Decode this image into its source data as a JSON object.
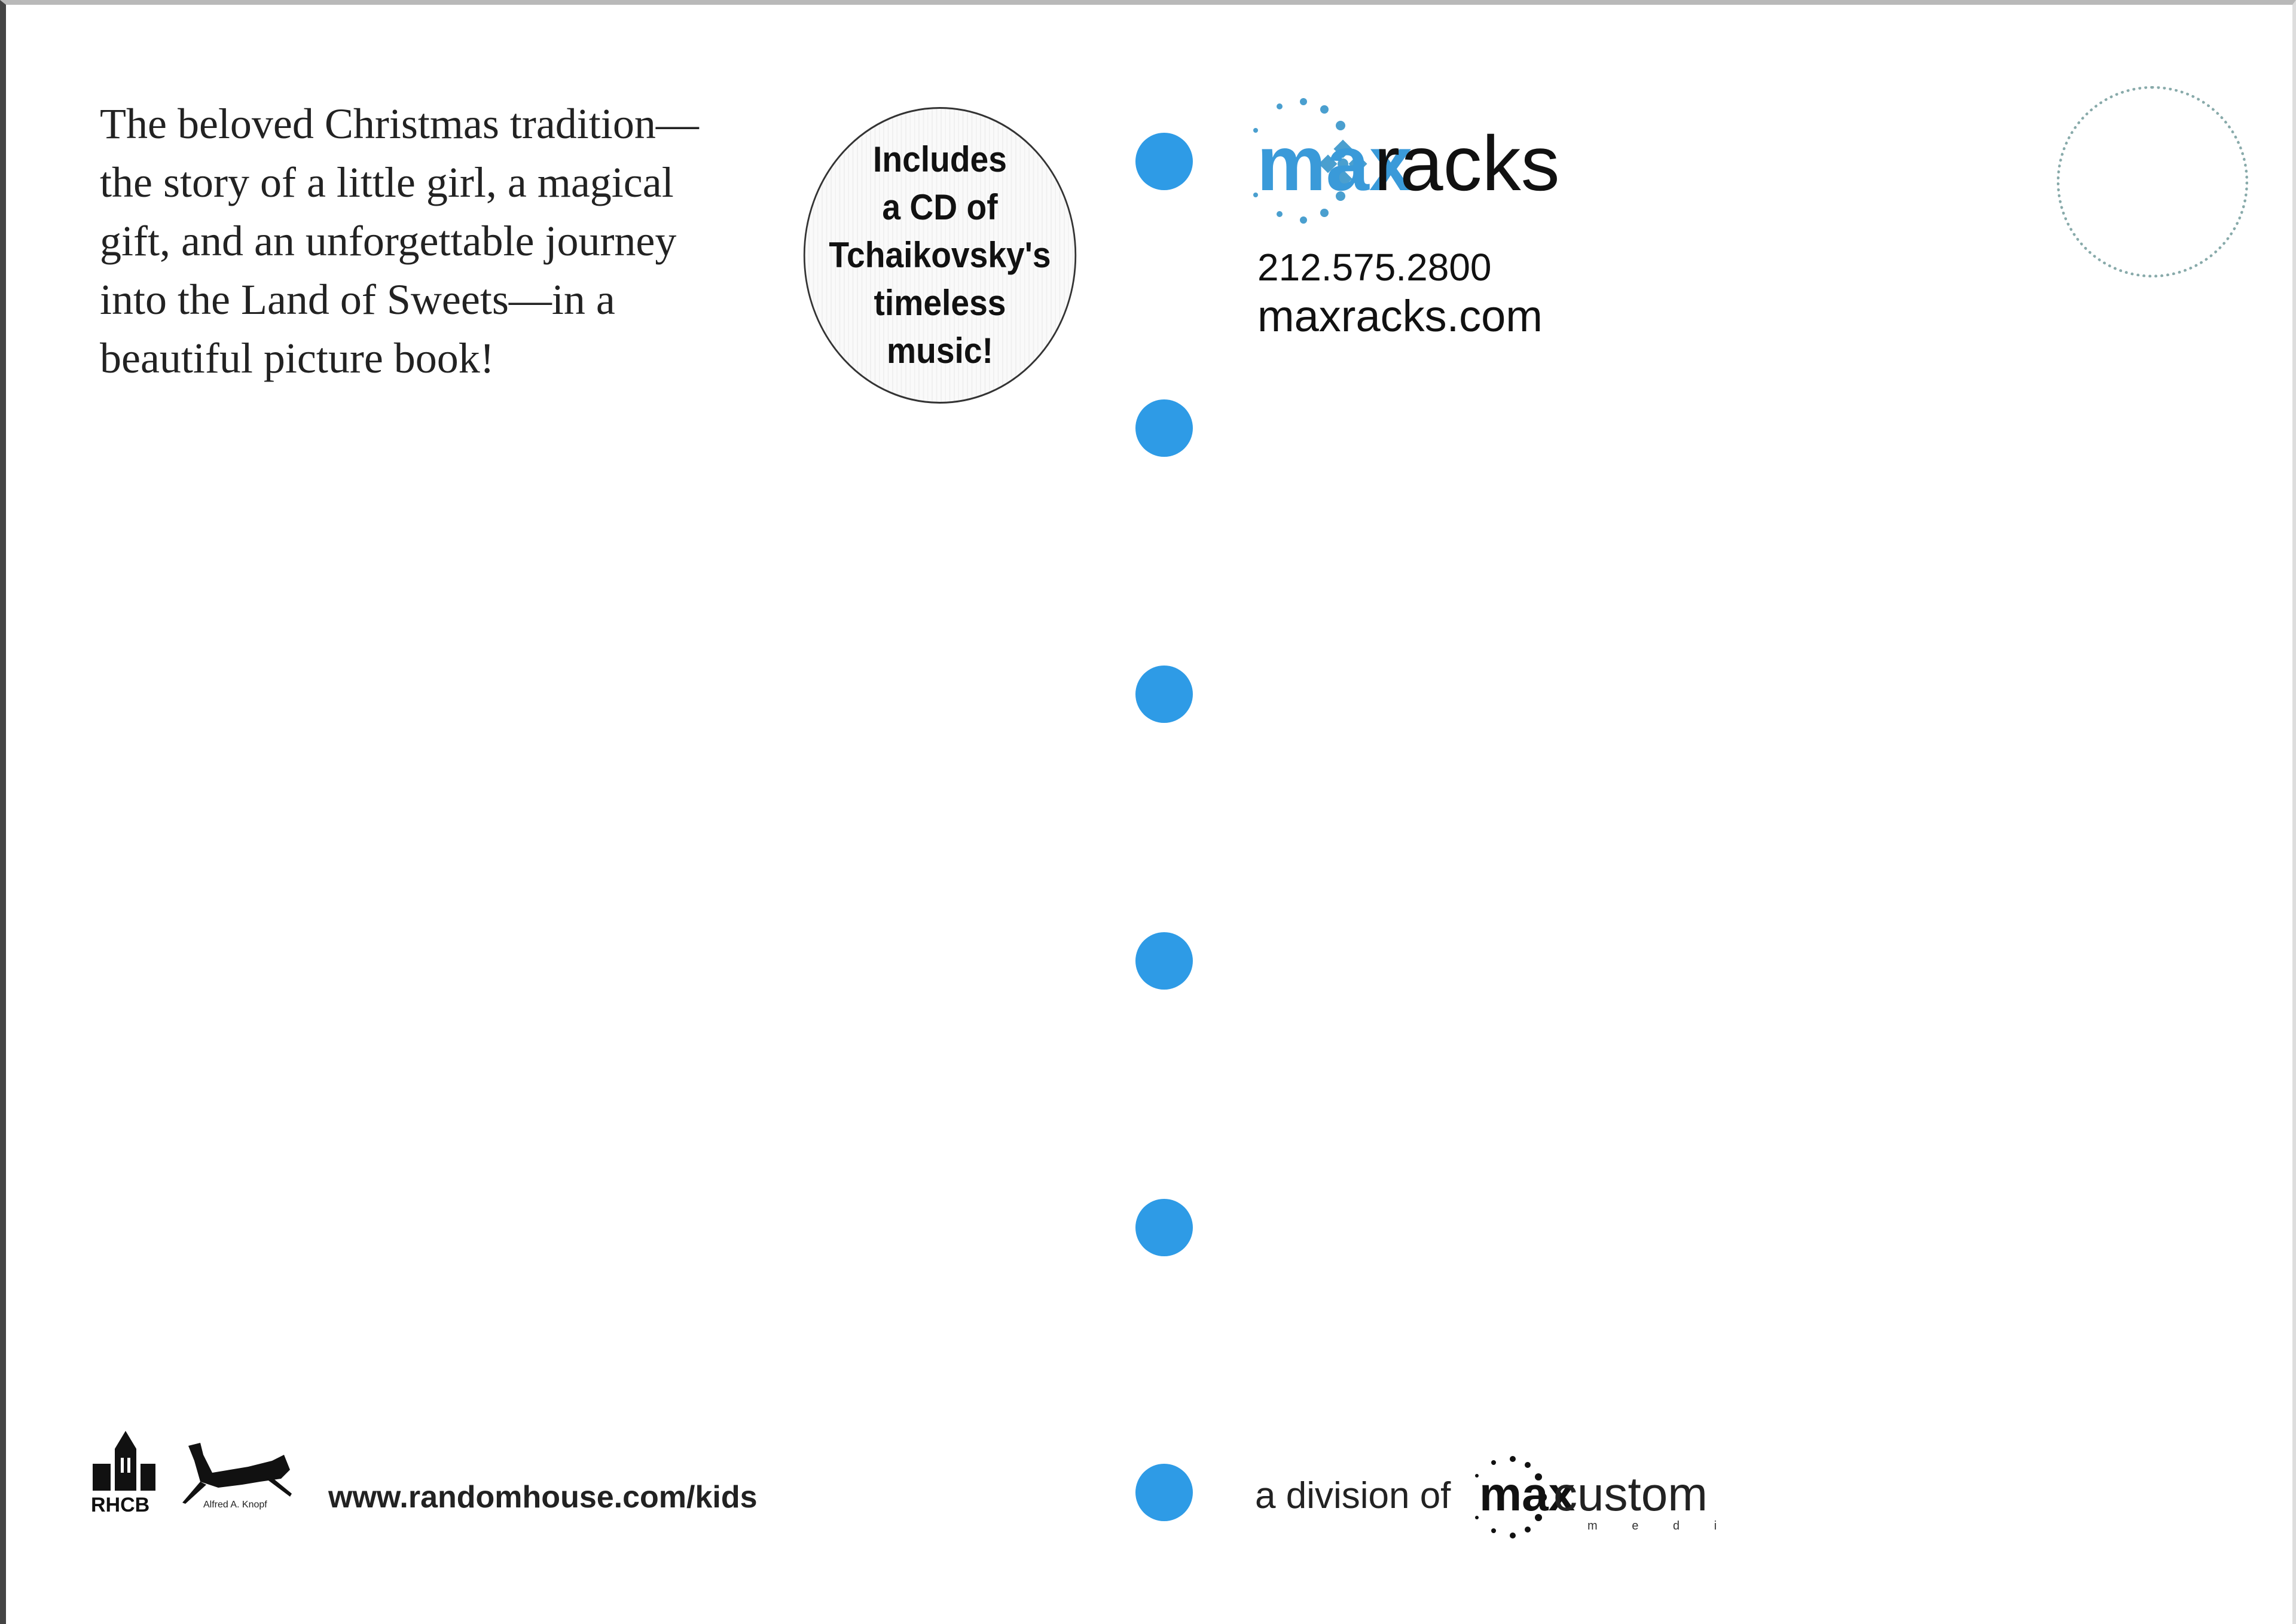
{
  "blurb": {
    "lines": [
      "The beloved Christmas tradition—",
      "the story of a little girl, a magical",
      "gift, and an unforgettable journey",
      "into the Land of Sweets—in a",
      "beautiful picture book!"
    ]
  },
  "badge": {
    "lines": [
      "Includes",
      "a CD of",
      "Tchaikovsky's",
      "timeless",
      "music!"
    ]
  },
  "maxracks": {
    "logo_max": "max",
    "logo_racks": "racks",
    "phone": "212.575.2800",
    "website": "maxracks.com",
    "brand_color": "#3a9ad9"
  },
  "publisher": {
    "rhcb_label": "RHCB",
    "knopf_label": "Alfred A. Knopf",
    "url": "www.randomhouse.com/kids"
  },
  "footer": {
    "division_text": "a division of",
    "logo_max": "max",
    "logo_custom": "custom",
    "logo_media": "m e d i a"
  },
  "colors": {
    "dots": "#2e9be6"
  }
}
